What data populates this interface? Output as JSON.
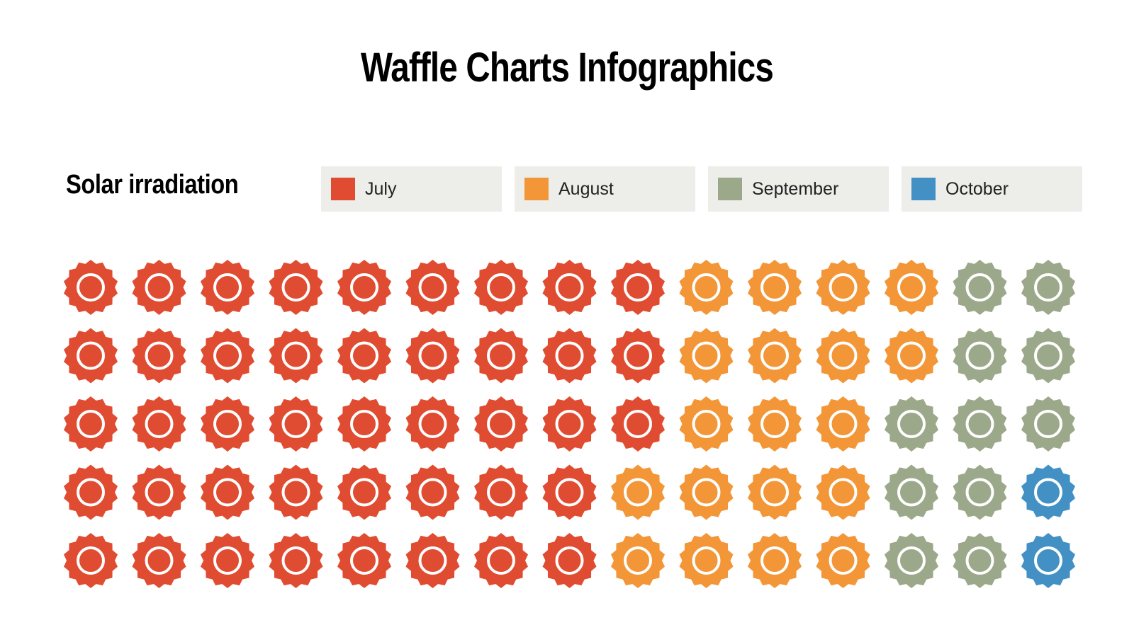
{
  "header": {
    "title": "Waffle Charts Infographics"
  },
  "chart_data": {
    "type": "waffle",
    "title": "Waffle Charts Infographics",
    "subtitle": "Solar irradiation",
    "rows": 5,
    "cols": 15,
    "legend_placement": "top",
    "categories": [
      "July",
      "August",
      "September",
      "October"
    ],
    "colors": {
      "July": "#e04c31",
      "August": "#f39638",
      "September": "#9ca88a",
      "October": "#4391c4"
    },
    "row_counts": [
      {
        "July": 9,
        "August": 4,
        "September": 2,
        "October": 0
      },
      {
        "July": 9,
        "August": 4,
        "September": 2,
        "October": 0
      },
      {
        "July": 9,
        "August": 3,
        "September": 3,
        "October": 0
      },
      {
        "July": 8,
        "August": 4,
        "September": 2,
        "October": 1
      },
      {
        "July": 8,
        "August": 4,
        "September": 2,
        "October": 1
      }
    ],
    "totals": {
      "July": 43,
      "August": 19,
      "September": 11,
      "October": 2
    }
  }
}
